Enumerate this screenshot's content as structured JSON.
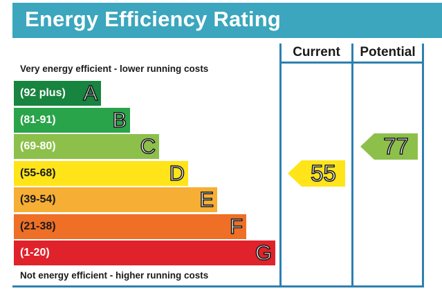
{
  "title": "Energy Efficiency Rating",
  "columns": {
    "current": "Current",
    "potential": "Potential"
  },
  "top_caption": "Very energy efficient - lower running costs",
  "bottom_caption": "Not energy efficient - higher running costs",
  "chart_data": {
    "type": "bar",
    "title": "Energy Efficiency Rating",
    "bands": [
      {
        "letter": "A",
        "range": "(92 plus)",
        "color": "#17843f"
      },
      {
        "letter": "B",
        "range": "(81-91)",
        "color": "#2aa44a"
      },
      {
        "letter": "C",
        "range": "(69-80)",
        "color": "#8dc04b"
      },
      {
        "letter": "D",
        "range": "(55-68)",
        "color": "#ffe41a"
      },
      {
        "letter": "E",
        "range": "(39-54)",
        "color": "#f6ae34"
      },
      {
        "letter": "F",
        "range": "(21-38)",
        "color": "#ee6f25"
      },
      {
        "letter": "G",
        "range": "(1-20)",
        "color": "#e0222b"
      }
    ],
    "current": {
      "value": "55",
      "band": "D",
      "color": "#ffe41a"
    },
    "potential": {
      "value": "77",
      "band": "C",
      "color": "#8dc04b"
    }
  }
}
